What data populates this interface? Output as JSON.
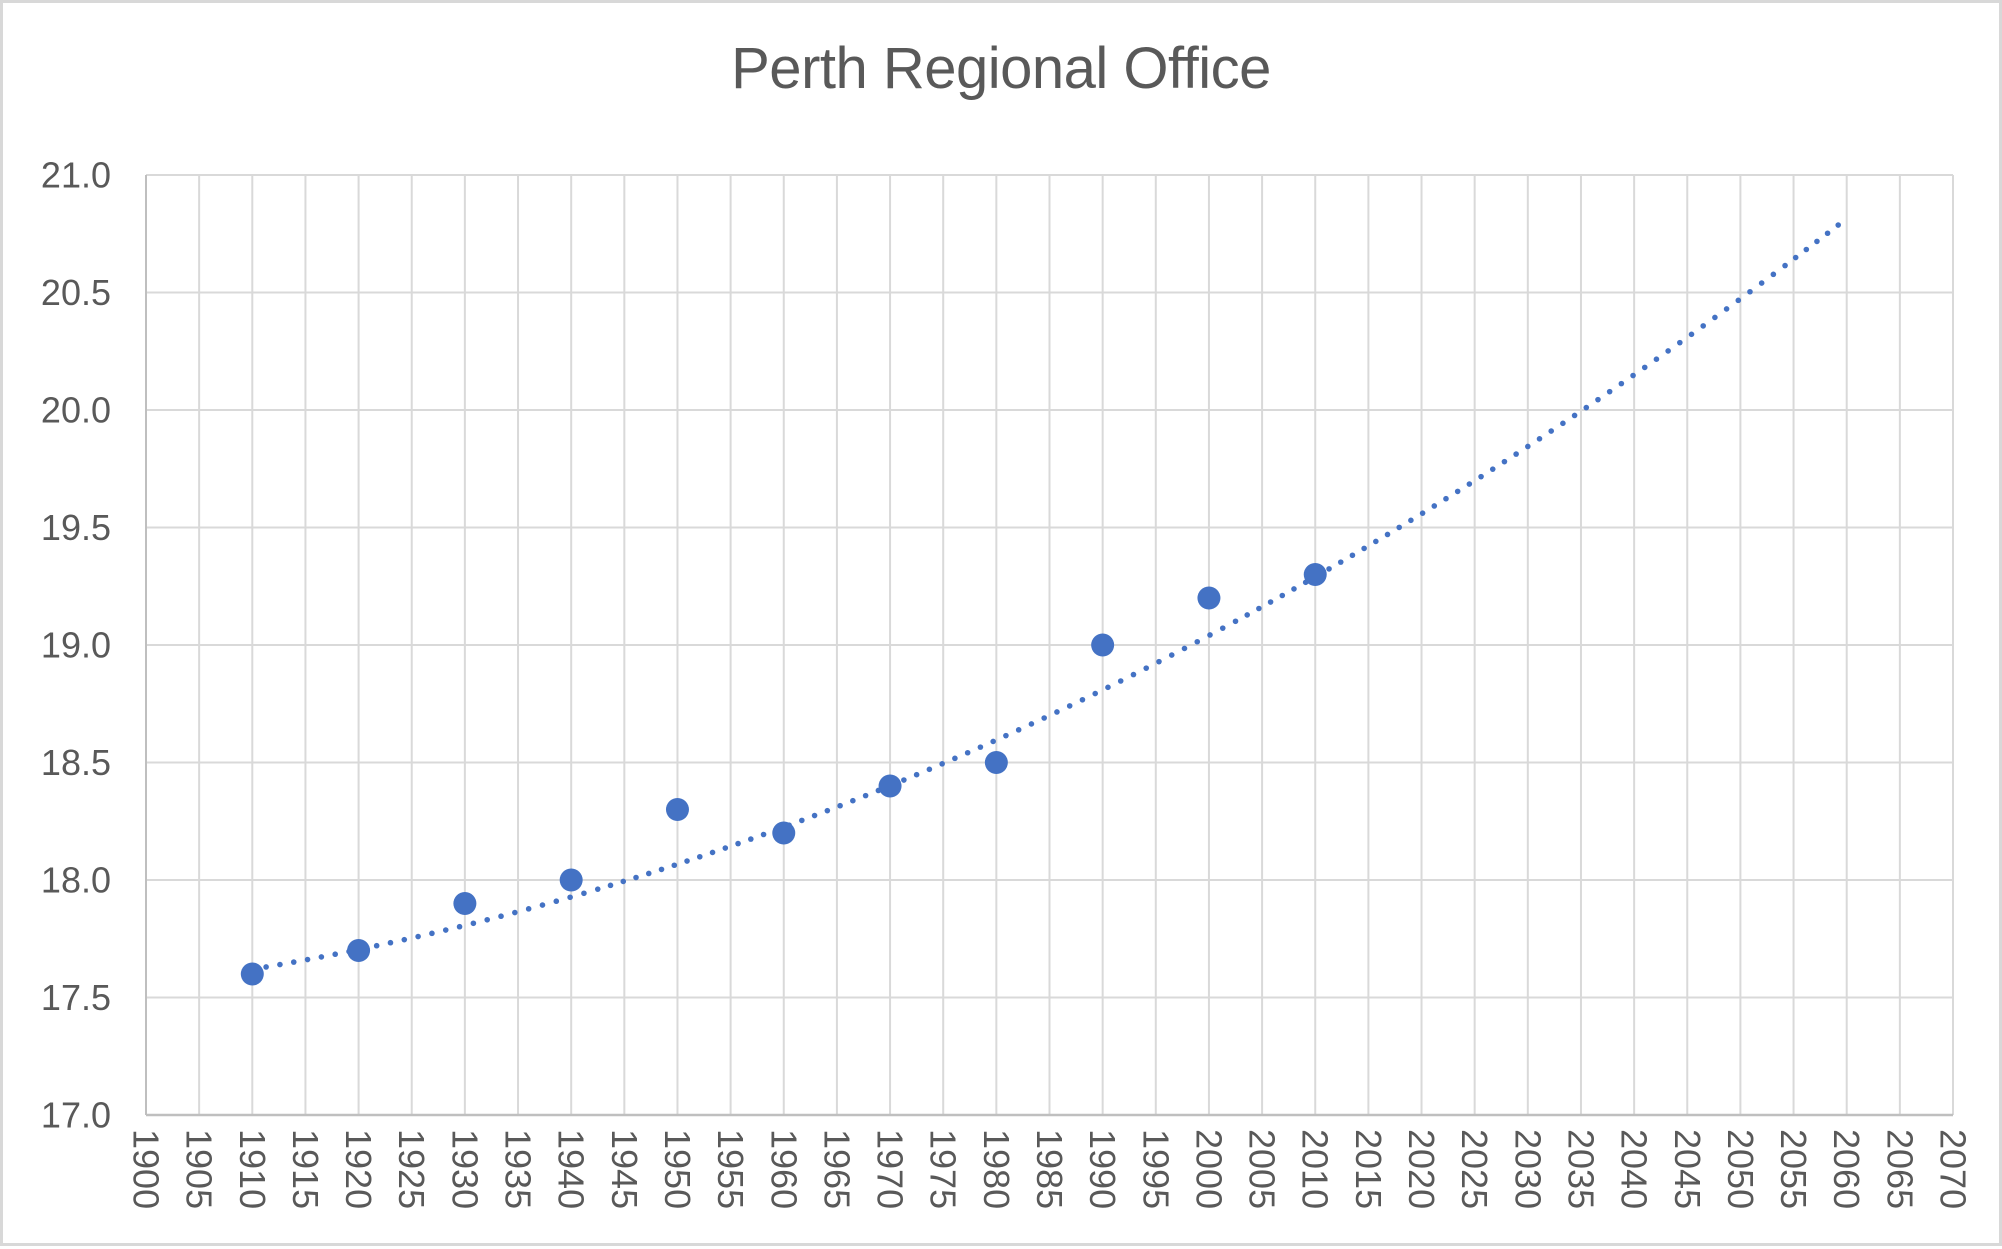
{
  "chart_data": {
    "type": "scatter",
    "title": "Perth Regional Office",
    "xlabel": "",
    "ylabel": "",
    "x_range": [
      1900,
      2070
    ],
    "y_range": [
      17.0,
      21.0
    ],
    "grid": true,
    "legend": "none",
    "x_ticks": [
      1900,
      1905,
      1910,
      1915,
      1920,
      1925,
      1930,
      1935,
      1940,
      1945,
      1950,
      1955,
      1960,
      1965,
      1970,
      1975,
      1980,
      1985,
      1990,
      1995,
      2000,
      2005,
      2010,
      2015,
      2020,
      2025,
      2030,
      2035,
      2040,
      2045,
      2050,
      2055,
      2060,
      2065,
      2070
    ],
    "y_ticks": [
      "17.0",
      "17.5",
      "18.0",
      "18.5",
      "19.0",
      "19.5",
      "20.0",
      "20.5",
      "21.0"
    ],
    "points": [
      {
        "year": 1910,
        "value": 17.6
      },
      {
        "year": 1920,
        "value": 17.7
      },
      {
        "year": 1930,
        "value": 17.9
      },
      {
        "year": 1940,
        "value": 18.0
      },
      {
        "year": 1950,
        "value": 18.3
      },
      {
        "year": 1960,
        "value": 18.2
      },
      {
        "year": 1970,
        "value": 18.4
      },
      {
        "year": 1980,
        "value": 18.5
      },
      {
        "year": 1990,
        "value": 19.0
      },
      {
        "year": 2000,
        "value": 19.2
      },
      {
        "year": 2010,
        "value": 19.3
      }
    ],
    "trendline": {
      "style": "dotted",
      "shape": "upward-curving polynomial forecast",
      "start_year": 1910,
      "end_year": 2060,
      "start_value": 17.62,
      "end_value": 20.78,
      "quad": {
        "a": 9.2e-05,
        "b": 0.0075,
        "c": 17.62
      }
    },
    "colors": {
      "series": "#4472C4",
      "trendline": "#4472C4",
      "title_text": "#595959",
      "tick_labels": "#595959",
      "gridlines": "#D9D9D9",
      "axis_line": "#BFBFBF",
      "frame_border": "#D8D8D8",
      "background": "#FFFFFF"
    }
  }
}
